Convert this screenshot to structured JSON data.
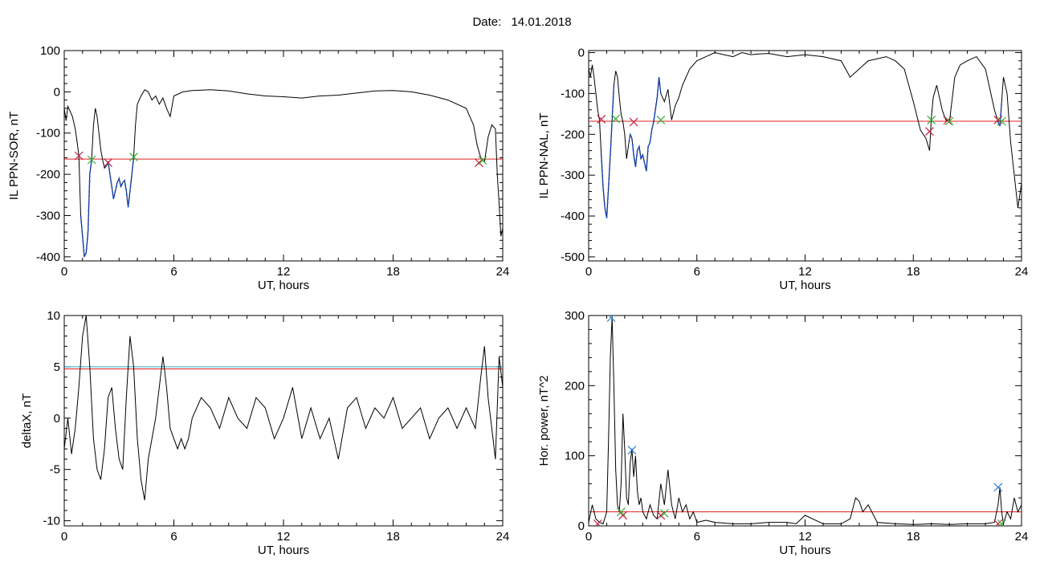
{
  "page": {
    "date_label": "Date:",
    "date_value": "14.01.2018"
  },
  "colors": {
    "signal": "#000000",
    "threshold": "#e02020",
    "threshold_alt": "#2aa3c8",
    "highlight": "#1a4fd0",
    "marker_start": "#c02040",
    "marker_end": "#30b030",
    "marker_peak": "#2a7fd0"
  },
  "chart_data": [
    {
      "id": "sor",
      "type": "line",
      "xlabel": "UT, hours",
      "ylabel": "IL PPN-SOR, nT",
      "xlim": [
        0,
        24
      ],
      "ylim": [
        -410,
        100
      ],
      "xticks": [
        0,
        6,
        12,
        18,
        24
      ],
      "yticks": [
        100,
        0,
        -100,
        -200,
        -300,
        -400
      ],
      "series": [
        {
          "x": [
            0,
            0.1,
            0.2,
            0.3,
            0.45,
            0.6,
            0.7,
            0.8,
            0.9,
            1.0,
            1.1,
            1.2,
            1.3,
            1.4,
            1.5,
            1.6,
            1.7,
            1.8,
            1.9,
            2.0,
            2.1,
            2.2,
            2.3,
            2.4,
            2.5,
            2.6,
            2.7,
            2.8,
            2.9,
            3.0,
            3.1,
            3.2,
            3.3,
            3.4,
            3.5,
            3.6,
            3.7,
            3.8,
            3.9,
            4.0,
            4.2,
            4.4,
            4.6,
            4.8,
            5.0,
            5.2,
            5.4,
            5.6,
            5.8,
            6.0,
            6.5,
            7,
            8,
            9,
            10,
            11,
            12,
            13,
            14,
            15,
            16,
            17,
            18,
            19,
            20,
            21,
            22,
            22.4,
            22.6,
            22.8,
            23.0,
            23.2,
            23.4,
            23.6,
            23.7,
            23.8,
            23.9,
            24.0
          ],
          "y": [
            -40,
            -70,
            -35,
            -45,
            -60,
            -90,
            -120,
            -155,
            -300,
            -350,
            -400,
            -390,
            -340,
            -200,
            -165,
            -80,
            -40,
            -60,
            -100,
            -140,
            -165,
            -185,
            -180,
            -170,
            -200,
            -230,
            -260,
            -240,
            -220,
            -210,
            -230,
            -220,
            -215,
            -240,
            -280,
            -240,
            -200,
            -160,
            -80,
            -30,
            -10,
            5,
            0,
            -20,
            -10,
            -30,
            -15,
            -40,
            -60,
            -10,
            0,
            3,
            5,
            2,
            -5,
            -10,
            -12,
            -15,
            -10,
            -8,
            -3,
            2,
            3,
            0,
            -8,
            -20,
            -40,
            -80,
            -130,
            -160,
            -170,
            -110,
            -80,
            -90,
            -200,
            -270,
            -350,
            -330
          ],
          "name": ""
        }
      ],
      "highlight_ranges": [
        [
          0.9,
          1.5
        ],
        [
          2.3,
          3.8
        ],
        [
          22.7,
          22.95
        ]
      ],
      "threshold": -163,
      "markers_start": [
        [
          0.8,
          -155
        ],
        [
          2.4,
          -172
        ],
        [
          22.7,
          -172
        ]
      ],
      "markers_end": [
        [
          1.5,
          -165
        ],
        [
          3.8,
          -158
        ],
        [
          22.9,
          -166
        ]
      ],
      "grid": false,
      "legend": "none"
    },
    {
      "id": "nal",
      "type": "line",
      "xlabel": "UT, hours",
      "ylabel": "IL PPN-NAL, nT",
      "xlim": [
        0,
        24
      ],
      "ylim": [
        -510,
        5
      ],
      "xticks": [
        0,
        6,
        12,
        18,
        24
      ],
      "yticks": [
        0,
        -100,
        -200,
        -300,
        -400,
        -500
      ],
      "series": [
        {
          "x": [
            0,
            0.1,
            0.2,
            0.3,
            0.4,
            0.5,
            0.6,
            0.7,
            0.8,
            0.9,
            1.0,
            1.1,
            1.2,
            1.3,
            1.4,
            1.5,
            1.6,
            1.7,
            1.8,
            1.9,
            2.0,
            2.1,
            2.2,
            2.3,
            2.4,
            2.5,
            2.6,
            2.7,
            2.8,
            2.9,
            3.0,
            3.1,
            3.2,
            3.3,
            3.4,
            3.5,
            3.6,
            3.7,
            3.8,
            3.9,
            4.0,
            4.2,
            4.4,
            4.6,
            4.8,
            5.0,
            5.2,
            5.4,
            5.6,
            6,
            6.5,
            7,
            7.5,
            8,
            8.5,
            9,
            9.5,
            10,
            11,
            12,
            13,
            14,
            14.5,
            15,
            15.5,
            16,
            16.5,
            17,
            17.5,
            18,
            18.4,
            18.7,
            18.9,
            19.0,
            19.1,
            19.3,
            19.6,
            19.8,
            20.0,
            20.3,
            20.6,
            21,
            21.5,
            22,
            22.3,
            22.5,
            22.7,
            22.8,
            22.9,
            23.0,
            23.2,
            23.4,
            23.6,
            23.8,
            24.0
          ],
          "y": [
            -40,
            -60,
            -30,
            -60,
            -100,
            -140,
            -165,
            -250,
            -330,
            -380,
            -405,
            -330,
            -250,
            -165,
            -80,
            -45,
            -60,
            -110,
            -150,
            -170,
            -200,
            -260,
            -230,
            -200,
            -210,
            -250,
            -280,
            -240,
            -230,
            -260,
            -250,
            -270,
            -290,
            -230,
            -220,
            -190,
            -170,
            -140,
            -110,
            -60,
            -100,
            -120,
            -90,
            -165,
            -130,
            -110,
            -80,
            -60,
            -40,
            -20,
            -10,
            0,
            -5,
            -10,
            0,
            -5,
            -3,
            -2,
            -10,
            -5,
            -10,
            -20,
            -60,
            -40,
            -20,
            -15,
            -10,
            -20,
            -40,
            -120,
            -190,
            -210,
            -240,
            -160,
            -110,
            -80,
            -140,
            -165,
            -170,
            -60,
            -30,
            -20,
            -10,
            -40,
            -100,
            -140,
            -170,
            -180,
            -120,
            -60,
            -100,
            -220,
            -300,
            -380,
            -320
          ],
          "name": ""
        }
      ],
      "highlight_ranges": [
        [
          0.7,
          1.4
        ],
        [
          2.3,
          4.0
        ],
        [
          22.7,
          22.9
        ]
      ],
      "threshold": -168,
      "markers_start": [
        [
          0.7,
          -163
        ],
        [
          2.5,
          -170
        ],
        [
          18.9,
          -193
        ],
        [
          19.9,
          -166
        ],
        [
          22.7,
          -165
        ]
      ],
      "markers_end": [
        [
          1.5,
          -162
        ],
        [
          4.0,
          -165
        ],
        [
          19.0,
          -165
        ],
        [
          20.0,
          -168
        ],
        [
          22.9,
          -168
        ]
      ],
      "grid": false,
      "legend": "none"
    },
    {
      "id": "deltax",
      "type": "line",
      "xlabel": "UT, hours",
      "ylabel": "deltaX, nT",
      "xlim": [
        0,
        24
      ],
      "ylim": [
        -10.5,
        10
      ],
      "xticks": [
        0,
        6,
        12,
        18,
        24
      ],
      "yticks": [
        10,
        5,
        0,
        -5,
        -10
      ],
      "series": [
        {
          "x": [
            0,
            0.2,
            0.4,
            0.6,
            0.8,
            1.0,
            1.2,
            1.4,
            1.6,
            1.8,
            2.0,
            2.2,
            2.4,
            2.6,
            2.8,
            3.0,
            3.2,
            3.4,
            3.6,
            3.8,
            4.0,
            4.2,
            4.4,
            4.6,
            4.8,
            5.0,
            5.2,
            5.4,
            5.6,
            5.8,
            6.0,
            6.2,
            6.4,
            6.6,
            6.8,
            7.0,
            7.5,
            8,
            8.5,
            9,
            9.5,
            10,
            10.5,
            11,
            11.5,
            12,
            12.5,
            13,
            13.5,
            14,
            14.5,
            15,
            15.5,
            16,
            16.5,
            17,
            17.5,
            18,
            18.5,
            19,
            19.5,
            20,
            20.5,
            21,
            21.5,
            22,
            22.5,
            22.8,
            23.0,
            23.2,
            23.4,
            23.6,
            23.8,
            24.0
          ],
          "y": [
            -3,
            0,
            -3.5,
            -1,
            3,
            8,
            10,
            5,
            -2,
            -5,
            -6,
            -3,
            2,
            3,
            -1,
            -4,
            -5,
            2,
            8,
            5,
            -2,
            -6,
            -8,
            -4,
            -2,
            0,
            3,
            6,
            3,
            -1,
            -2,
            -3,
            -2,
            -3,
            -2,
            0,
            2,
            1,
            -1,
            2,
            0,
            -1,
            2,
            1,
            -2,
            0,
            3,
            -2,
            1,
            -2,
            0,
            -4,
            1,
            2,
            -1,
            1,
            0,
            2,
            -1,
            0,
            1,
            -2,
            0,
            1,
            -1,
            1,
            -1,
            4,
            7,
            2,
            -1,
            -4,
            6,
            3
          ],
          "name": ""
        }
      ],
      "threshold": 4.8,
      "threshold_alt": 5.0,
      "grid": false,
      "legend": "none"
    },
    {
      "id": "power",
      "type": "line",
      "xlabel": "UT, hours",
      "ylabel": "Hor. power, nT^2",
      "xlim": [
        0,
        24
      ],
      "ylim": [
        0,
        300
      ],
      "xticks": [
        0,
        6,
        12,
        18,
        24
      ],
      "yticks": [
        300,
        200,
        100,
        0
      ],
      "series": [
        {
          "x": [
            0,
            0.2,
            0.4,
            0.6,
            0.8,
            1.0,
            1.1,
            1.2,
            1.3,
            1.4,
            1.5,
            1.6,
            1.7,
            1.8,
            1.9,
            2.0,
            2.1,
            2.2,
            2.3,
            2.4,
            2.5,
            2.6,
            2.7,
            2.8,
            2.9,
            3.0,
            3.2,
            3.4,
            3.6,
            3.8,
            4.0,
            4.2,
            4.4,
            4.6,
            4.8,
            5.0,
            5.2,
            5.4,
            5.6,
            5.8,
            6.0,
            6.5,
            7,
            8,
            9,
            10,
            11,
            11.5,
            12,
            13,
            14,
            14.5,
            14.8,
            15.0,
            15.2,
            15.5,
            16,
            17,
            18,
            19,
            20,
            21,
            22,
            22.5,
            22.7,
            22.8,
            22.9,
            23.0,
            23.2,
            23.4,
            23.6,
            23.8,
            24.0
          ],
          "y": [
            5,
            30,
            10,
            5,
            3,
            20,
            120,
            240,
            298,
            200,
            80,
            30,
            20,
            60,
            160,
            110,
            40,
            30,
            90,
            110,
            70,
            100,
            50,
            30,
            40,
            20,
            10,
            30,
            15,
            10,
            60,
            30,
            80,
            30,
            10,
            40,
            20,
            30,
            10,
            20,
            5,
            8,
            5,
            3,
            3,
            5,
            5,
            3,
            15,
            3,
            3,
            10,
            40,
            35,
            20,
            30,
            5,
            3,
            2,
            3,
            2,
            3,
            3,
            5,
            30,
            55,
            20,
            3,
            20,
            10,
            40,
            20,
            30
          ],
          "name": ""
        }
      ],
      "threshold": 20,
      "markers_start": [
        [
          0.5,
          3
        ],
        [
          1.9,
          15
        ],
        [
          4.0,
          15
        ],
        [
          22.7,
          3
        ]
      ],
      "markers_end": [
        [
          1.8,
          20
        ],
        [
          4.2,
          18
        ],
        [
          22.9,
          3
        ]
      ],
      "markers_peak": [
        [
          1.25,
          297
        ],
        [
          2.4,
          108
        ],
        [
          22.7,
          55
        ]
      ],
      "grid": false,
      "legend": "none"
    }
  ]
}
